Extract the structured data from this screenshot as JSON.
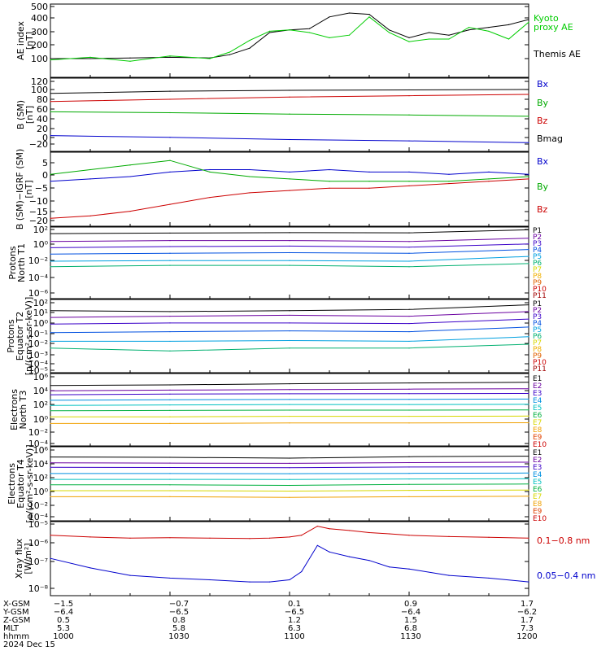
{
  "panels": [
    {
      "ylabel": [
        "AE index",
        "[nT]"
      ],
      "ticks": [
        "500",
        "400",
        "300",
        "200",
        "100"
      ],
      "legend": [
        {
          "text": "Kyoto",
          "color": "#00cc00"
        },
        {
          "text": "proxy AE",
          "color": "#00cc00"
        },
        {
          "text": "Themis AE",
          "color": "#000000"
        }
      ]
    },
    {
      "ylabel": [
        "B (SM)",
        "[nT]"
      ],
      "ticks": [
        "120",
        "100",
        "80",
        "60",
        "40",
        "20",
        "0",
        "−20"
      ],
      "legend": [
        {
          "text": "Bx",
          "color": "#0000cc"
        },
        {
          "text": "By",
          "color": "#00aa00"
        },
        {
          "text": "Bz",
          "color": "#cc0000"
        },
        {
          "text": "Bmag",
          "color": "#000000"
        }
      ]
    },
    {
      "ylabel": [
        "B (SM)−IGRF (SM)",
        "[nT]"
      ],
      "ticks": [
        "5",
        "0",
        "−5",
        "−10",
        "−15",
        "−20"
      ],
      "legend": [
        {
          "text": "Bx",
          "color": "#0000cc"
        },
        {
          "text": "By",
          "color": "#00aa00"
        },
        {
          "text": "Bz",
          "color": "#cc0000"
        }
      ]
    },
    {
      "ylabel": [
        "Protons",
        "North T1"
      ],
      "ticks": [
        "10²",
        "10⁰",
        "10⁻²",
        "10⁻⁴",
        "10⁻⁶"
      ],
      "legend": [
        {
          "text": "P1",
          "color": "#000000"
        },
        {
          "text": "P2",
          "color": "#6a00a0"
        },
        {
          "text": "P3",
          "color": "#3a00c8"
        },
        {
          "text": "P4",
          "color": "#0050e0"
        },
        {
          "text": "P5",
          "color": "#00a0e0"
        },
        {
          "text": "P6",
          "color": "#00b070"
        },
        {
          "text": "P7",
          "color": "#d8d800"
        },
        {
          "text": "P8",
          "color": "#f0b000"
        },
        {
          "text": "P9",
          "color": "#e06000"
        },
        {
          "text": "P10",
          "color": "#cc0000"
        },
        {
          "text": "P11",
          "color": "#a00000"
        }
      ]
    },
    {
      "ylabel": [
        "Protons",
        "Equator T2",
        "[p/(cm²-s-sr-keV)]"
      ],
      "ticks": [
        "10²",
        "10¹",
        "10⁰",
        "10⁻¹",
        "10⁻²",
        "10⁻³",
        "10⁻⁴",
        "10⁻⁵"
      ],
      "legend": [
        {
          "text": "P1",
          "color": "#000000"
        },
        {
          "text": "P2",
          "color": "#6a00a0"
        },
        {
          "text": "P3",
          "color": "#3a00c8"
        },
        {
          "text": "P4",
          "color": "#0050e0"
        },
        {
          "text": "P5",
          "color": "#00a0e0"
        },
        {
          "text": "P6",
          "color": "#00b070"
        },
        {
          "text": "P7",
          "color": "#d8d800"
        },
        {
          "text": "P8",
          "color": "#f0b000"
        },
        {
          "text": "P9",
          "color": "#e06000"
        },
        {
          "text": "P10",
          "color": "#cc0000"
        },
        {
          "text": "P11",
          "color": "#a00000"
        }
      ]
    },
    {
      "ylabel": [
        "Electrons",
        "North T3"
      ],
      "ticks": [
        "10⁶",
        "10⁴",
        "10²",
        "10⁰",
        "10⁻²",
        "10⁻⁴"
      ],
      "legend": [
        {
          "text": "E1",
          "color": "#000000"
        },
        {
          "text": "E2",
          "color": "#6a00a0"
        },
        {
          "text": "E3",
          "color": "#3a00c8"
        },
        {
          "text": "E4",
          "color": "#0090e0"
        },
        {
          "text": "E5",
          "color": "#00c0c0"
        },
        {
          "text": "E6",
          "color": "#00b040"
        },
        {
          "text": "E7",
          "color": "#d8d800"
        },
        {
          "text": "E8",
          "color": "#f0a000"
        },
        {
          "text": "E9",
          "color": "#e04000"
        },
        {
          "text": "E10",
          "color": "#cc0000"
        }
      ]
    },
    {
      "ylabel": [
        "Electrons",
        "Equator T4",
        "[e/(cm²-s-sr-keV)]"
      ],
      "ticks": [
        "10⁶",
        "10⁴",
        "10²",
        "10⁰",
        "10⁻²",
        "10⁻⁴"
      ],
      "legend": [
        {
          "text": "E1",
          "color": "#000000"
        },
        {
          "text": "E2",
          "color": "#6a00a0"
        },
        {
          "text": "E3",
          "color": "#3a00c8"
        },
        {
          "text": "E4",
          "color": "#0090e0"
        },
        {
          "text": "E5",
          "color": "#00c0c0"
        },
        {
          "text": "E6",
          "color": "#00b040"
        },
        {
          "text": "E7",
          "color": "#d8d800"
        },
        {
          "text": "E8",
          "color": "#f0a000"
        },
        {
          "text": "E9",
          "color": "#e04000"
        },
        {
          "text": "E10",
          "color": "#cc0000"
        }
      ]
    },
    {
      "ylabel": [
        "Xray flux",
        "[W/m²]"
      ],
      "ticks": [
        "10⁻⁵",
        "10⁻⁶",
        "10⁻⁷",
        "10⁻⁸"
      ],
      "legend": [
        {
          "text": "0.1−0.8 nm",
          "color": "#cc0000"
        },
        {
          "text": "0.05−0.4 nm",
          "color": "#0000cc"
        }
      ]
    }
  ],
  "footer": {
    "rows": [
      {
        "label": "X-GSM",
        "values": [
          "−1.5",
          "−0.7",
          "0.1",
          "0.9",
          "1.7"
        ]
      },
      {
        "label": "Y-GSM",
        "values": [
          "−6.4",
          "−6.5",
          "−6.5",
          "−6.4",
          "−6.2"
        ]
      },
      {
        "label": "Z-GSM",
        "values": [
          "0.5",
          "0.8",
          "1.2",
          "1.5",
          "1.7"
        ]
      },
      {
        "label": "MLT",
        "values": [
          "5.3",
          "5.8",
          "6.3",
          "6.8",
          "7.3"
        ]
      },
      {
        "label": "hhmm",
        "values": [
          "1000",
          "1030",
          "1100",
          "1130",
          "1200"
        ]
      }
    ],
    "date": "2024 Dec 15"
  },
  "chart_data": [
    {
      "type": "line",
      "ylabel": "AE index [nT]",
      "ylim": [
        0,
        500
      ],
      "x": [
        "1000",
        "1010",
        "1020",
        "1030",
        "1040",
        "1045",
        "1050",
        "1055",
        "1100",
        "1105",
        "1110",
        "1115",
        "1120",
        "1125",
        "1130",
        "1135",
        "1140",
        "1145",
        "1150",
        "1155",
        "1200"
      ],
      "series": [
        {
          "name": "Themis AE",
          "values": [
            100,
            100,
            105,
            110,
            105,
            130,
            180,
            300,
            320,
            330,
            420,
            450,
            440,
            320,
            260,
            300,
            280,
            320,
            340,
            360,
            400
          ]
        },
        {
          "name": "Kyoto proxy AE",
          "values": [
            90,
            110,
            80,
            120,
            100,
            150,
            240,
            310,
            320,
            300,
            260,
            280,
            420,
            300,
            230,
            250,
            250,
            340,
            310,
            250,
            380
          ]
        }
      ]
    },
    {
      "type": "line",
      "ylabel": "B (SM) [nT]",
      "ylim": [
        -20,
        120
      ],
      "x": [
        "1000",
        "1030",
        "1100",
        "1130",
        "1200"
      ],
      "series": [
        {
          "name": "Bmag",
          "values": [
            93,
            98,
            100,
            101,
            102
          ]
        },
        {
          "name": "Bz",
          "values": [
            75,
            80,
            85,
            88,
            91
          ]
        },
        {
          "name": "By",
          "values": [
            52,
            50,
            47,
            45,
            42
          ]
        },
        {
          "name": "Bx",
          "values": [
            -1,
            -5,
            -10,
            -13,
            -17
          ]
        }
      ]
    },
    {
      "type": "line",
      "ylabel": "B (SM)−IGRF (SM) [nT]",
      "ylim": [
        -20,
        7
      ],
      "x": [
        "1000",
        "1010",
        "1020",
        "1030",
        "1040",
        "1050",
        "1100",
        "1110",
        "1120",
        "1130",
        "1140",
        "1150",
        "1200"
      ],
      "series": [
        {
          "name": "Bx",
          "values": [
            -3,
            -2,
            -1,
            1,
            2,
            2,
            1,
            2,
            1,
            1,
            0,
            1,
            0
          ]
        },
        {
          "name": "By",
          "values": [
            0,
            2,
            4,
            6,
            1,
            -1,
            -2,
            -3,
            -3,
            -3,
            -3,
            -2,
            -1
          ]
        },
        {
          "name": "Bz",
          "values": [
            -19,
            -18,
            -16,
            -13,
            -10,
            -8,
            -7,
            -6,
            -6,
            -5,
            -4,
            -3,
            -2
          ]
        }
      ]
    },
    {
      "type": "line",
      "ylabel": "Protons North T1",
      "yscale": "log",
      "ylim": [
        1e-06,
        100
      ],
      "x": [
        "1000",
        "1030",
        "1100",
        "1130",
        "1200"
      ],
      "series": [
        {
          "name": "P1",
          "values": [
            30,
            35,
            40,
            38,
            90
          ]
        },
        {
          "name": "P2",
          "values": [
            3,
            4,
            4,
            3,
            8
          ]
        },
        {
          "name": "P3",
          "values": [
            0.5,
            0.7,
            0.8,
            0.6,
            1.5
          ]
        },
        {
          "name": "P4",
          "values": [
            0.08,
            0.1,
            0.12,
            0.1,
            0.3
          ]
        },
        {
          "name": "P5",
          "values": [
            0.01,
            0.012,
            0.012,
            0.01,
            0.04
          ]
        },
        {
          "name": "P6",
          "values": [
            0.002,
            0.003,
            0.003,
            0.002,
            0.005
          ]
        }
      ]
    },
    {
      "type": "line",
      "ylabel": "Protons Equator T2 [p/(cm²-s-sr-keV)]",
      "yscale": "log",
      "ylim": [
        1e-05,
        100
      ],
      "x": [
        "1000",
        "1030",
        "1100",
        "1130",
        "1200"
      ],
      "series": [
        {
          "name": "P1",
          "values": [
            15,
            12,
            15,
            20,
            60
          ]
        },
        {
          "name": "P2",
          "values": [
            3,
            4,
            5,
            4,
            12
          ]
        },
        {
          "name": "P3",
          "values": [
            0.6,
            0.8,
            0.8,
            0.7,
            2
          ]
        },
        {
          "name": "P4",
          "values": [
            0.08,
            0.1,
            0.12,
            0.1,
            0.3
          ]
        },
        {
          "name": "P5",
          "values": [
            0.01,
            0.01,
            0.012,
            0.01,
            0.03
          ]
        },
        {
          "name": "P6",
          "values": [
            0.002,
            0.001,
            0.002,
            0.002,
            0.005
          ]
        }
      ]
    },
    {
      "type": "line",
      "ylabel": "Electrons North T3",
      "yscale": "log",
      "ylim": [
        0.0001,
        1000000.0
      ],
      "x": [
        "1000",
        "1030",
        "1100",
        "1130",
        "1200"
      ],
      "series": [
        {
          "name": "E1",
          "values": [
            50000,
            60000,
            90000,
            120000,
            150000
          ]
        },
        {
          "name": "E2",
          "values": [
            8000,
            10000,
            12000,
            14000,
            16000
          ]
        },
        {
          "name": "E3",
          "values": [
            2000,
            2500,
            2800,
            3000,
            3200
          ]
        },
        {
          "name": "E4",
          "values": [
            300,
            350,
            400,
            420,
            450
          ]
        },
        {
          "name": "E5",
          "values": [
            50,
            60,
            70,
            70,
            75
          ]
        },
        {
          "name": "E6",
          "values": [
            8,
            9,
            10,
            10,
            11
          ]
        },
        {
          "name": "E7",
          "values": [
            1,
            1,
            1.2,
            1.2,
            1.3
          ]
        },
        {
          "name": "E8",
          "values": [
            0.1,
            0.1,
            0.12,
            0.12,
            0.13
          ]
        }
      ]
    },
    {
      "type": "line",
      "ylabel": "Electrons Equator T4 [e/(cm²-s-sr-keV)]",
      "yscale": "log",
      "ylim": [
        0.0001,
        1000000.0
      ],
      "x": [
        "1000",
        "1030",
        "1100",
        "1130",
        "1200"
      ],
      "series": [
        {
          "name": "E1",
          "values": [
            90000,
            80000,
            60000,
            100000,
            120000
          ]
        },
        {
          "name": "E2",
          "values": [
            12000,
            11000,
            10000,
            13000,
            15000
          ]
        },
        {
          "name": "E3",
          "values": [
            2500,
            2400,
            2200,
            2800,
            3000
          ]
        },
        {
          "name": "E4",
          "values": [
            300,
            300,
            280,
            320,
            350
          ]
        },
        {
          "name": "E5",
          "values": [
            40,
            40,
            38,
            45,
            50
          ]
        },
        {
          "name": "E6",
          "values": [
            6,
            6,
            5,
            7,
            8
          ]
        },
        {
          "name": "E7",
          "values": [
            0.8,
            0.8,
            0.7,
            0.9,
            1
          ]
        },
        {
          "name": "E8",
          "values": [
            0.1,
            0.1,
            0.08,
            0.1,
            0.12
          ]
        }
      ]
    },
    {
      "type": "line",
      "ylabel": "Xray flux [W/m²]",
      "yscale": "log",
      "ylim": [
        2e-09,
        1e-05
      ],
      "x": [
        "1000",
        "1010",
        "1020",
        "1030",
        "1040",
        "1050",
        "1055",
        "1100",
        "1103",
        "1107",
        "1110",
        "1115",
        "1120",
        "1125",
        "1130",
        "1140",
        "1150",
        "1200"
      ],
      "series": [
        {
          "name": "0.1−0.8 nm",
          "values": [
            3e-06,
            2.5e-06,
            2.2e-06,
            2.3e-06,
            2.2e-06,
            2.1e-06,
            2.2e-06,
            2.5e-06,
            3e-06,
            8e-06,
            6e-06,
            5e-06,
            4e-06,
            3.5e-06,
            3e-06,
            2.6e-06,
            2.4e-06,
            2.2e-06
          ]
        },
        {
          "name": "0.05−0.4 nm",
          "values": [
            2.5e-07,
            9e-08,
            4e-08,
            3e-08,
            2.5e-08,
            2e-08,
            2e-08,
            2.5e-08,
            6e-08,
            1e-06,
            5e-07,
            3e-07,
            2e-07,
            1e-07,
            8e-08,
            4e-08,
            3e-08,
            2e-08
          ]
        }
      ]
    }
  ]
}
